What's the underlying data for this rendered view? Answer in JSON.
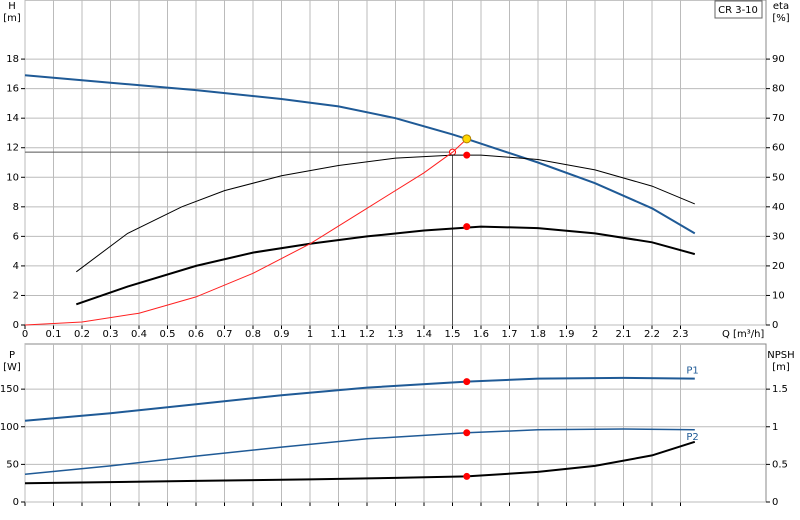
{
  "chart_data": [
    {
      "type": "line",
      "annotation": "CR 3-10",
      "ylabel": [
        "H",
        "[m]"
      ],
      "y2label": [
        "eta",
        "[%]"
      ],
      "xlabel": "Q [m³/h]",
      "xlim": [
        0,
        2.6
      ],
      "xticks": [
        0,
        0.1,
        0.2,
        0.3,
        0.4,
        0.5,
        0.6,
        0.7,
        0.8,
        0.9,
        1,
        1.1,
        1.2,
        1.3,
        1.4,
        1.5,
        1.6,
        1.7,
        1.8,
        1.9,
        2,
        2.1,
        2.2,
        2.3
      ],
      "ylim": [
        0,
        22
      ],
      "yticks": [
        0,
        2,
        4,
        6,
        8,
        10,
        12,
        14,
        16,
        18
      ],
      "y2lim": [
        0,
        110
      ],
      "y2ticks": [
        0,
        10,
        20,
        30,
        40,
        50,
        60,
        70,
        80,
        90
      ],
      "grid": true,
      "series": [
        {
          "color": "#1f5a96",
          "line_width": 2,
          "x": [
            0,
            0.3,
            0.6,
            0.9,
            1.1,
            1.3,
            1.5,
            1.55,
            1.8,
            2.0,
            2.2,
            2.35
          ],
          "values": [
            16.9,
            16.4,
            15.9,
            15.3,
            14.8,
            14.0,
            12.9,
            12.6,
            11.0,
            9.6,
            7.9,
            6.2
          ]
        },
        {
          "color": "#000000",
          "line_width": 1,
          "axis": "y2",
          "x": [
            0.18,
            0.36,
            0.55,
            0.7,
            0.9,
            1.1,
            1.3,
            1.5,
            1.6,
            1.8,
            2.0,
            2.2,
            2.35
          ],
          "values": [
            18,
            31,
            40,
            45.5,
            50.5,
            54,
            56.5,
            57.5,
            57.5,
            56,
            52.5,
            47,
            41
          ]
        },
        {
          "color": "#000000",
          "line_width": 2,
          "axis": "y2",
          "x": [
            0.18,
            0.36,
            0.6,
            0.8,
            1.0,
            1.2,
            1.4,
            1.6,
            1.8,
            2.0,
            2.2,
            2.35
          ],
          "values": [
            7,
            13,
            20,
            24.5,
            27.5,
            30,
            32,
            33.3,
            32.8,
            31,
            28,
            24
          ]
        },
        {
          "color": "#ff2020",
          "line_width": 1,
          "x": [
            0,
            0.2,
            0.4,
            0.6,
            0.8,
            1.0,
            1.2,
            1.4,
            1.5,
            1.55
          ],
          "values": [
            0,
            0.2,
            0.8,
            1.9,
            3.5,
            5.5,
            7.9,
            10.3,
            11.7,
            12.6
          ]
        }
      ],
      "reference": {
        "x": 1.5,
        "y": 11.7,
        "color": "#555555"
      },
      "points": [
        {
          "x": 1.55,
          "y": 12.6,
          "color": "#ffd700"
        },
        {
          "x": 1.55,
          "y": 57.5,
          "axis": "y2",
          "color": "#ff0000"
        },
        {
          "x": 1.55,
          "y": 33.3,
          "axis": "y2",
          "color": "#ff0000"
        }
      ]
    },
    {
      "type": "line",
      "ylabel": [
        "P",
        "[W]"
      ],
      "y2label": [
        "NPSH",
        "[m]"
      ],
      "xlim": [
        0,
        2.6
      ],
      "xticks": [
        0,
        0.1,
        0.2,
        0.3,
        0.4,
        0.5,
        0.6,
        0.7,
        0.8,
        0.9,
        1,
        1.1,
        1.2,
        1.3,
        1.4,
        1.5,
        1.6,
        1.7,
        1.8,
        1.9,
        2,
        2.1,
        2.2,
        2.3
      ],
      "show_xtick_labels": false,
      "ylim": [
        0,
        210
      ],
      "yticks": [
        0,
        50,
        100,
        150
      ],
      "y2lim": [
        0,
        2.1
      ],
      "y2ticks": [
        0,
        0.5,
        1,
        1.5
      ],
      "grid": true,
      "series": [
        {
          "name": "P1",
          "color": "#1f5a96",
          "line_width": 2,
          "x": [
            0,
            0.3,
            0.6,
            0.9,
            1.2,
            1.55,
            1.8,
            2.1,
            2.35
          ],
          "values": [
            108,
            118,
            130,
            142,
            152,
            160,
            164,
            165,
            164
          ]
        },
        {
          "name": "P2",
          "color": "#1f5a96",
          "line_width": 1.5,
          "x": [
            0,
            0.3,
            0.6,
            0.9,
            1.2,
            1.55,
            1.8,
            2.1,
            2.35
          ],
          "values": [
            37,
            48,
            61,
            73,
            84,
            92,
            96,
            97,
            96
          ]
        },
        {
          "color": "#000000",
          "line_width": 2,
          "axis": "y2",
          "x": [
            0,
            0.6,
            1.0,
            1.3,
            1.55,
            1.8,
            2.0,
            2.2,
            2.35
          ],
          "values": [
            0.25,
            0.28,
            0.3,
            0.32,
            0.34,
            0.4,
            0.48,
            0.62,
            0.8
          ]
        }
      ],
      "points": [
        {
          "x": 1.55,
          "y": 160,
          "color": "#ff0000"
        },
        {
          "x": 1.55,
          "y": 92,
          "color": "#ff0000"
        },
        {
          "x": 1.55,
          "y": 0.34,
          "axis": "y2",
          "color": "#ff0000"
        }
      ]
    }
  ]
}
